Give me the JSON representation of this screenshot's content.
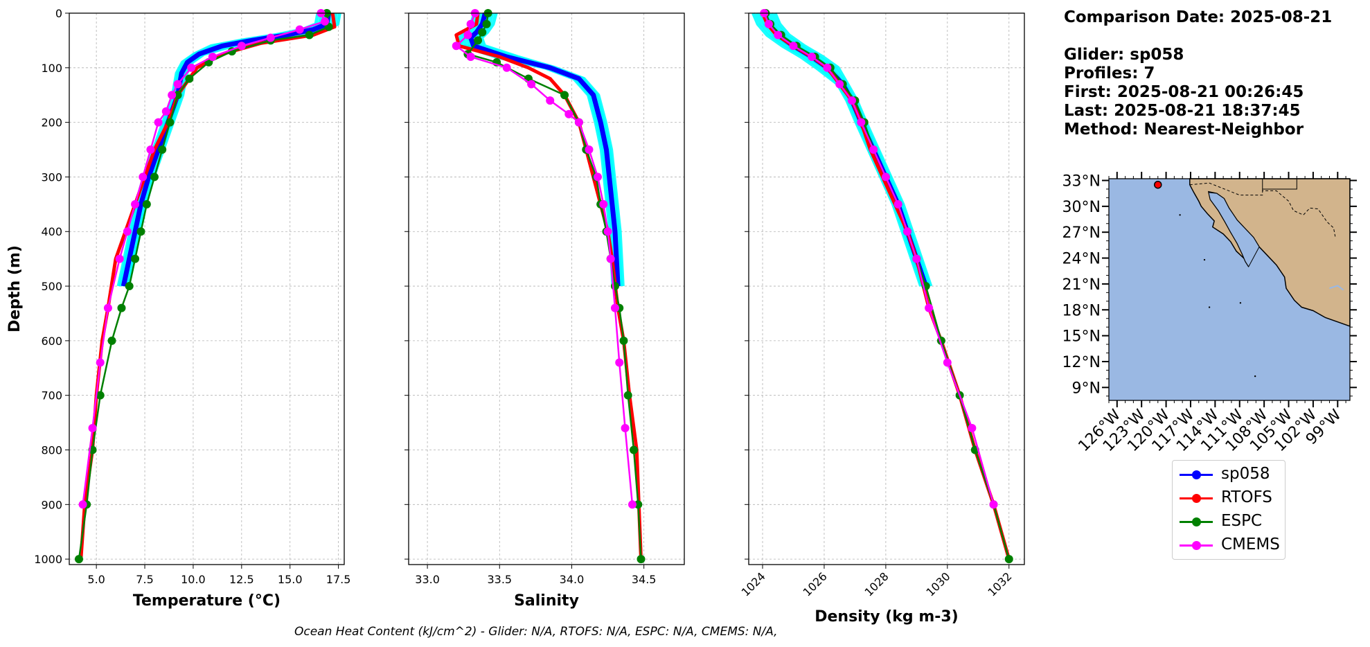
{
  "info": {
    "comparison_date": "Comparison Date: 2025-08-21",
    "glider": "Glider: sp058",
    "profiles": "Profiles: 7",
    "first": "First: 2025-08-21 00:26:45",
    "last": "Last: 2025-08-21 18:37:45",
    "method": "Method: Nearest-Neighbor"
  },
  "footer": {
    "ohc_text": "Ocean Heat Content (kJ/cm^2) - Glider: N/A,  RTOFS: N/A,  ESPC: N/A,  CMEMS: N/A,"
  },
  "legend": [
    {
      "label": "sp058",
      "color": "#0000ff"
    },
    {
      "label": "RTOFS",
      "color": "#ff0000"
    },
    {
      "label": "ESPC",
      "color": "#008000"
    },
    {
      "label": "CMEMS",
      "color": "#ff00ff"
    }
  ],
  "colors": {
    "glider_profiles": "#00ffff",
    "glider_mean": "#0000ff",
    "rtofs": "#ff0000",
    "espc": "#008000",
    "cmems": "#ff00ff",
    "ocean": "#9ab8e3",
    "land": "#d2b48c",
    "grid": "#b0b0b0"
  },
  "chart_data": [
    {
      "type": "line",
      "xlabel": "Temperature (°C)",
      "ylabel": "Depth (m)",
      "xlim": [
        3.6,
        17.8
      ],
      "ylim": [
        1010,
        0
      ],
      "xticks": [
        5.0,
        7.5,
        10.0,
        12.5,
        15.0,
        17.5
      ],
      "xtick_labels": [
        "5.0",
        "7.5",
        "10.0",
        "12.5",
        "15.0",
        "17.5"
      ],
      "yticks": [
        0,
        100,
        200,
        300,
        400,
        500,
        600,
        700,
        800,
        900,
        1000
      ],
      "grid": true,
      "series": [
        {
          "name": "sp058",
          "x": [
            17.0,
            16.9,
            16.2,
            14.8,
            13.0,
            11.5,
            10.3,
            9.7,
            9.4,
            9.2,
            8.7,
            8.2,
            7.7,
            7.3,
            7.0,
            6.7,
            6.4
          ],
          "y": [
            0,
            20,
            30,
            40,
            50,
            60,
            75,
            90,
            110,
            150,
            200,
            250,
            300,
            350,
            400,
            450,
            500
          ]
        },
        {
          "name": "RTOFS",
          "x": [
            17.2,
            17.3,
            16.2,
            13.5,
            11.5,
            10.2,
            9.2,
            8.7,
            8.0,
            7.5,
            7.0,
            6.5,
            6.0,
            5.6,
            5.3,
            5.0,
            4.8,
            4.6,
            4.4,
            4.2
          ],
          "y": [
            0,
            25,
            40,
            55,
            75,
            100,
            150,
            200,
            250,
            300,
            350,
            400,
            450,
            540,
            600,
            700,
            800,
            850,
            900,
            1000
          ]
        },
        {
          "name": "ESPC",
          "x": [
            16.9,
            17.0,
            16.0,
            14.0,
            12.0,
            10.8,
            9.8,
            9.2,
            8.8,
            8.4,
            8.0,
            7.6,
            7.3,
            7.0,
            6.7,
            6.3,
            5.8,
            5.2,
            4.8,
            4.5,
            4.1
          ],
          "y": [
            0,
            25,
            40,
            50,
            70,
            90,
            120,
            150,
            200,
            250,
            300,
            350,
            400,
            450,
            500,
            540,
            600,
            700,
            800,
            900,
            1000
          ]
        },
        {
          "name": "CMEMS",
          "x": [
            16.6,
            16.8,
            15.5,
            14.0,
            12.5,
            11.0,
            9.9,
            9.2,
            8.9,
            8.6,
            8.2,
            7.8,
            7.4,
            7.0,
            6.6,
            6.2,
            5.6,
            5.2,
            4.8,
            4.3
          ],
          "y": [
            0,
            15,
            30,
            45,
            60,
            80,
            100,
            130,
            150,
            180,
            200,
            250,
            300,
            350,
            400,
            450,
            540,
            640,
            760,
            900
          ]
        }
      ]
    },
    {
      "type": "line",
      "xlabel": "Salinity",
      "xlim": [
        32.87,
        34.78
      ],
      "ylim": [
        1010,
        0
      ],
      "xticks": [
        33.0,
        33.5,
        34.0,
        34.5
      ],
      "xtick_labels": [
        "33.0",
        "33.5",
        "34.0",
        "34.5"
      ],
      "yticks": [
        0,
        100,
        200,
        300,
        400,
        500,
        600,
        700,
        800,
        900,
        1000
      ],
      "grid": true,
      "series": [
        {
          "name": "sp058",
          "x": [
            33.4,
            33.38,
            33.34,
            33.3,
            33.32,
            33.55,
            33.85,
            34.05,
            34.15,
            34.2,
            34.24,
            34.26,
            34.28,
            34.3,
            34.31,
            34.32
          ],
          "y": [
            0,
            20,
            35,
            45,
            60,
            80,
            100,
            120,
            150,
            200,
            250,
            300,
            350,
            400,
            450,
            500
          ]
        },
        {
          "name": "RTOFS",
          "x": [
            33.35,
            33.34,
            33.2,
            33.22,
            33.5,
            33.7,
            33.85,
            33.95,
            34.05,
            34.1,
            34.15,
            34.2,
            34.25,
            34.28,
            34.32,
            34.36,
            34.4,
            34.45,
            34.48
          ],
          "y": [
            0,
            20,
            40,
            60,
            80,
            100,
            120,
            150,
            200,
            250,
            300,
            350,
            400,
            450,
            540,
            600,
            700,
            800,
            1000
          ]
        },
        {
          "name": "ESPC",
          "x": [
            33.42,
            33.41,
            33.38,
            33.35,
            33.28,
            33.48,
            33.7,
            33.95,
            34.05,
            34.1,
            34.17,
            34.2,
            34.24,
            34.27,
            34.3,
            34.33,
            34.36,
            34.39,
            34.43,
            34.46,
            34.48
          ],
          "y": [
            0,
            20,
            35,
            50,
            75,
            90,
            120,
            150,
            200,
            250,
            300,
            350,
            400,
            450,
            500,
            540,
            600,
            700,
            800,
            900,
            1000
          ]
        },
        {
          "name": "CMEMS",
          "x": [
            33.33,
            33.3,
            33.28,
            33.2,
            33.3,
            33.55,
            33.72,
            33.85,
            33.98,
            34.05,
            34.12,
            34.18,
            34.22,
            34.25,
            34.27,
            34.3,
            34.33,
            34.37,
            34.42
          ],
          "y": [
            0,
            20,
            40,
            60,
            80,
            100,
            130,
            160,
            185,
            200,
            250,
            300,
            350,
            400,
            450,
            540,
            640,
            760,
            900
          ]
        }
      ]
    },
    {
      "type": "line",
      "xlabel": "Density (kg m-3)",
      "xlim": [
        1023.55,
        1032.5
      ],
      "ylim": [
        1010,
        0
      ],
      "xticks": [
        1024,
        1026,
        1028,
        1030,
        1032
      ],
      "xtick_labels": [
        "1024",
        "1026",
        "1028",
        "1030",
        "1032"
      ],
      "yticks": [
        0,
        100,
        200,
        300,
        400,
        500,
        600,
        700,
        800,
        900,
        1000
      ],
      "grid": true,
      "series": [
        {
          "name": "sp058",
          "x": [
            1024.05,
            1024.2,
            1024.5,
            1025.0,
            1025.6,
            1026.1,
            1026.6,
            1026.9,
            1027.2,
            1027.6,
            1028.0,
            1028.4,
            1028.7,
            1029.0,
            1029.3
          ],
          "y": [
            0,
            20,
            40,
            60,
            80,
            100,
            130,
            160,
            200,
            250,
            300,
            350,
            400,
            450,
            500
          ]
        },
        {
          "name": "RTOFS",
          "x": [
            1024.0,
            1024.15,
            1024.45,
            1025.0,
            1025.6,
            1026.1,
            1026.5,
            1026.9,
            1027.2,
            1027.5,
            1027.9,
            1028.3,
            1028.7,
            1029.0,
            1029.4,
            1029.8,
            1030.4,
            1030.9,
            1031.5,
            1032.0
          ],
          "y": [
            0,
            20,
            40,
            60,
            80,
            100,
            130,
            160,
            200,
            250,
            300,
            350,
            400,
            450,
            540,
            600,
            700,
            800,
            900,
            1000
          ]
        },
        {
          "name": "ESPC",
          "x": [
            1024.1,
            1024.25,
            1024.6,
            1025.1,
            1025.7,
            1026.2,
            1026.6,
            1027.0,
            1027.3,
            1027.6,
            1028.0,
            1028.4,
            1028.7,
            1029.0,
            1029.3,
            1029.8,
            1030.4,
            1030.9,
            1031.5,
            1032.0
          ],
          "y": [
            0,
            20,
            40,
            60,
            80,
            100,
            130,
            160,
            200,
            250,
            300,
            350,
            400,
            450,
            500,
            600,
            700,
            800,
            900,
            1000
          ]
        },
        {
          "name": "CMEMS",
          "x": [
            1024.05,
            1024.2,
            1024.5,
            1025.0,
            1025.6,
            1026.1,
            1026.5,
            1026.9,
            1027.2,
            1027.6,
            1028.0,
            1028.4,
            1028.7,
            1029.0,
            1029.4,
            1030.0,
            1030.8,
            1031.5
          ],
          "y": [
            0,
            20,
            40,
            60,
            80,
            100,
            130,
            160,
            200,
            250,
            300,
            350,
            400,
            450,
            540,
            640,
            760,
            900
          ]
        }
      ]
    },
    {
      "type": "map",
      "xlim": [
        -127,
        -97.5
      ],
      "ylim": [
        7.5,
        33.2
      ],
      "xticks": [
        -126,
        -123,
        -120,
        -117,
        -114,
        -111,
        -108,
        -105,
        -102,
        -99
      ],
      "xtick_labels": [
        "126°W",
        "123°W",
        "120°W",
        "117°W",
        "114°W",
        "111°W",
        "108°W",
        "105°W",
        "102°W",
        "99°W"
      ],
      "yticks": [
        9,
        12,
        15,
        18,
        21,
        24,
        27,
        30,
        33
      ],
      "ytick_labels": [
        "9°N",
        "12°N",
        "15°N",
        "18°N",
        "21°N",
        "24°N",
        "27°N",
        "30°N",
        "33°N"
      ],
      "glider_position": {
        "lon": -121,
        "lat": 32.5
      }
    }
  ]
}
